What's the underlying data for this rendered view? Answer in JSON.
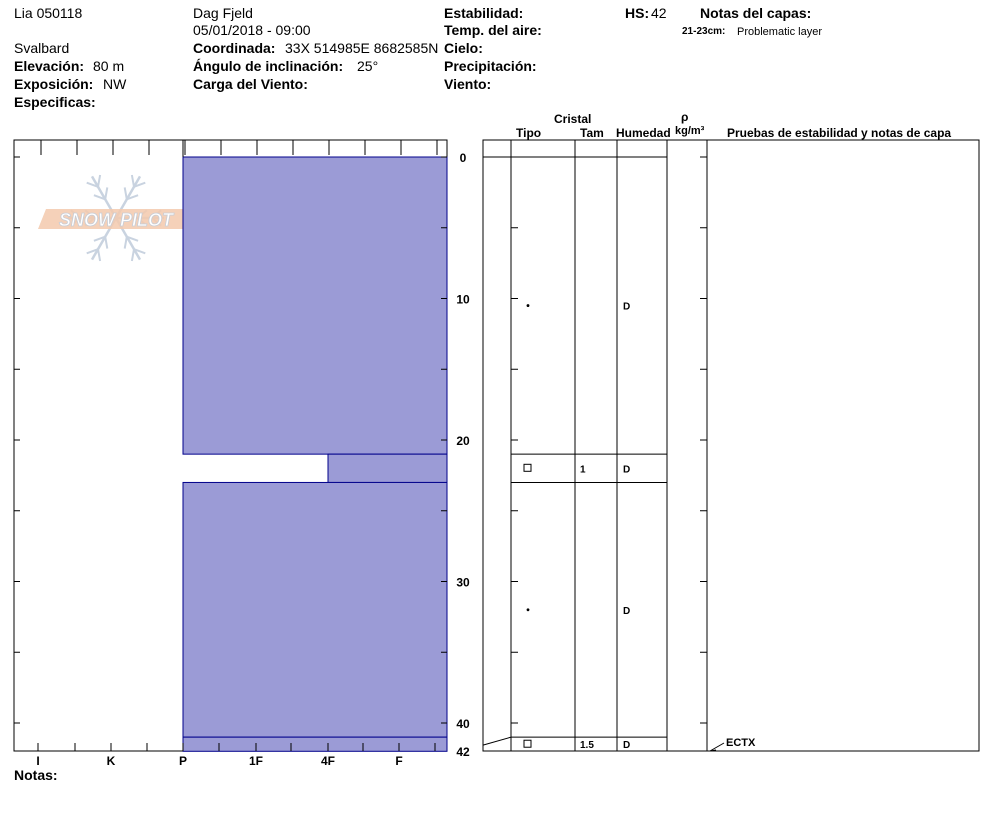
{
  "header": {
    "location": "Lia 050118",
    "region": "Svalbard",
    "observer": "Dag Fjeld",
    "datetime": "05/01/2018 - 09:00",
    "elevation_label": "Elevación:",
    "elevation_value": "80 m",
    "aspect_label": "Exposición:",
    "aspect_value": "NW",
    "specifics_label": "Especificas:",
    "coord_label": "Coordinada:",
    "coord_value": "33X 514985E 8682585N",
    "slope_label": "Ángulo de inclinación:",
    "slope_value": "25°",
    "wind_load_label": "Carga del Viento:",
    "stability_label": "Estabilidad:",
    "air_temp_label": "Temp. del aire:",
    "sky_label": "Cielo:",
    "precip_label": "Precipitación:",
    "wind_label": "Viento:",
    "hs_label": "HS:",
    "hs_value": "42",
    "layer_notes_label": "Notas del capas:",
    "layer_note_range": "21-23cm:",
    "layer_note_text": "Problematic layer"
  },
  "footer": {
    "notes_label": "Notas:"
  },
  "logo": {
    "text": "SNOW PILOT"
  },
  "columns": {
    "crystal": "Cristal",
    "type": "Tipo",
    "size": "Tam",
    "moisture": "Humedad",
    "rho": "ρ",
    "density_unit": "kg/m³",
    "tests": "Pruebas de estabilidad y notas de capa"
  },
  "chart_data": {
    "type": "bar",
    "title": "",
    "xlabel": "",
    "ylabel": "",
    "hardness_scale": [
      "I",
      "K",
      "P",
      "1F",
      "4F",
      "F"
    ],
    "depth_ticks": [
      0,
      10,
      20,
      30,
      40,
      42
    ],
    "ylim": [
      0,
      42
    ],
    "hs": 42,
    "layers": [
      {
        "top": 0,
        "bottom": 21,
        "hardness": "P",
        "grain_type": "dot",
        "grain_size": "",
        "moisture": "D"
      },
      {
        "top": 21,
        "bottom": 23,
        "hardness": "4F",
        "grain_type": "square",
        "grain_size": "1",
        "moisture": "D"
      },
      {
        "top": 23,
        "bottom": 41,
        "hardness": "P",
        "grain_type": "dot",
        "grain_size": "",
        "moisture": "D"
      },
      {
        "top": 41,
        "bottom": 42,
        "hardness": "P",
        "grain_type": "square",
        "grain_size": "1.5",
        "moisture": "D"
      }
    ],
    "tests": [
      {
        "depth": 42,
        "label": "ECTX"
      }
    ],
    "colors": {
      "layer_fill": "#9b9bd6",
      "layer_stroke": "#00008b"
    }
  }
}
